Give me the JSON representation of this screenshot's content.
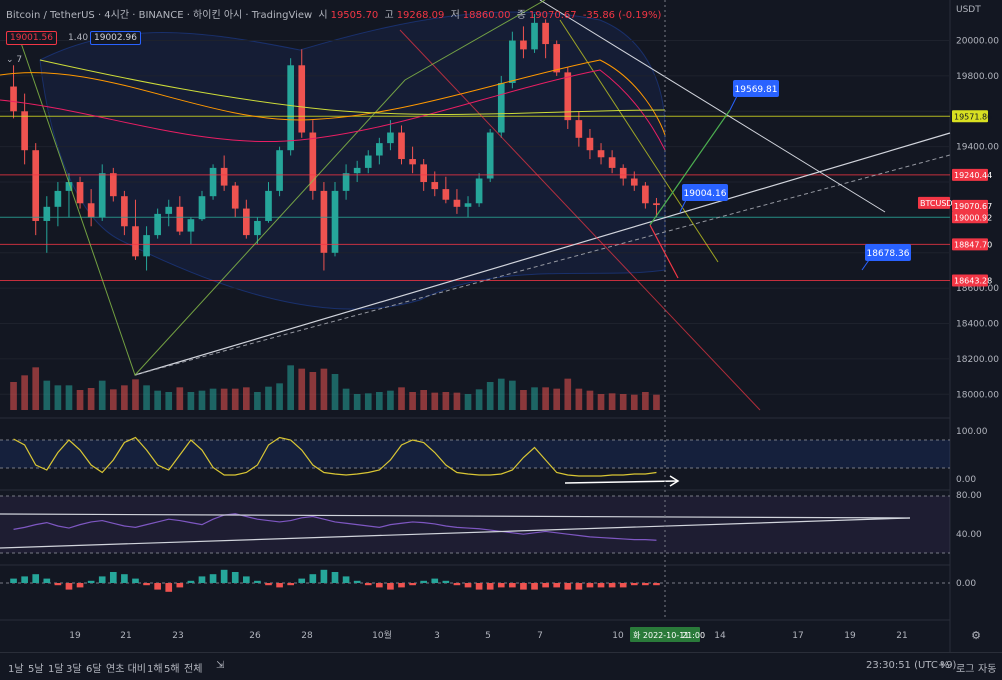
{
  "header": {
    "symbol": "Bitcoin / TetherUS · 4시간 · BINANCE · 하이킨 아시 · TradingView",
    "open_label": "시",
    "open_val": "19505.70",
    "high_label": "고",
    "high_val": "19268.09",
    "low_label": "저",
    "low_val": "18860.00",
    "close_label": "종",
    "close_val": "19070.67",
    "change": "-35.86 (-0.19%)",
    "price_left": "19001.56",
    "spread": "1.40",
    "price_right": "19002.96",
    "indicator_count": "7"
  },
  "price_axis": {
    "currency": "USDT",
    "ticks": [
      "20000.00",
      "19800.00",
      "19400.00",
      "18600.00",
      "18400.00",
      "18200.00",
      "18000.00"
    ],
    "tags": [
      {
        "label": "19571.86",
        "kind": "yellow"
      },
      {
        "label": "19240.44",
        "kind": "red"
      },
      {
        "label": "BTCUSDT",
        "kind": "red"
      },
      {
        "label": "19070.67",
        "kind": "red"
      },
      {
        "label": "19000.92",
        "kind": "red"
      },
      {
        "label": "18847.70",
        "kind": "red"
      },
      {
        "label": "18643.28",
        "kind": "red"
      }
    ]
  },
  "annotations": [
    {
      "label": "19569.81"
    },
    {
      "label": "19004.16"
    },
    {
      "label": "18678.36"
    }
  ],
  "oscillator1": {
    "ticks": [
      "100.00",
      "0.00"
    ]
  },
  "oscillator2": {
    "ticks": [
      "80.00",
      "40.00"
    ]
  },
  "oscillator3": {
    "ticks": [
      "0.00"
    ]
  },
  "time_axis": {
    "labels": [
      "19",
      "21",
      "23",
      "26",
      "28",
      "10월",
      "3",
      "5",
      "7",
      "10",
      "14",
      "17",
      "19",
      "21"
    ],
    "current_label": "화 2022-10-11",
    "current_time": "21:00"
  },
  "toolbar": {
    "ranges": [
      "1날",
      "5날",
      "1달",
      "3달",
      "6달",
      "연초 대비",
      "1해",
      "5해",
      "전체"
    ],
    "clock": "23:30:51 (UTC+9)",
    "percent": "%",
    "log": "로그",
    "auto": "자동"
  },
  "chart_data": {
    "type": "candlestick",
    "symbol": "BTCUSDT",
    "y_range": [
      17900,
      20150
    ],
    "horizontal_levels": [
      19571.86,
      19240.44,
      19000.92,
      18847.7,
      18643.28
    ],
    "last_price": 19070.67,
    "target_labels": [
      19569.81,
      19004.16,
      18678.36
    ],
    "candles": [
      [
        19740,
        19860,
        19560,
        19600
      ],
      [
        19600,
        19700,
        19300,
        19380
      ],
      [
        19380,
        19420,
        18900,
        18980
      ],
      [
        18980,
        19120,
        18800,
        19060
      ],
      [
        19060,
        19200,
        18950,
        19150
      ],
      [
        19150,
        19250,
        19000,
        19200
      ],
      [
        19200,
        19230,
        19050,
        19080
      ],
      [
        19080,
        19160,
        18950,
        19000
      ],
      [
        19000,
        19300,
        18980,
        19250
      ],
      [
        19250,
        19280,
        19090,
        19120
      ],
      [
        19120,
        19150,
        18900,
        18950
      ],
      [
        18950,
        19100,
        18760,
        18780
      ],
      [
        18780,
        18950,
        18700,
        18900
      ],
      [
        18900,
        19050,
        18880,
        19020
      ],
      [
        19020,
        19100,
        18950,
        19060
      ],
      [
        19060,
        19120,
        18900,
        18920
      ],
      [
        18920,
        19000,
        18850,
        18990
      ],
      [
        18990,
        19150,
        18980,
        19120
      ],
      [
        19120,
        19300,
        19100,
        19280
      ],
      [
        19280,
        19350,
        19150,
        19180
      ],
      [
        19180,
        19200,
        19000,
        19050
      ],
      [
        19050,
        19100,
        18880,
        18900
      ],
      [
        18900,
        19000,
        18850,
        18980
      ],
      [
        18980,
        19200,
        18970,
        19150
      ],
      [
        19150,
        19400,
        19120,
        19380
      ],
      [
        19380,
        19900,
        19350,
        19860
      ],
      [
        19860,
        19950,
        19450,
        19480
      ],
      [
        19480,
        19550,
        19100,
        19150
      ],
      [
        19150,
        19200,
        18700,
        18800
      ],
      [
        18800,
        19200,
        18780,
        19150
      ],
      [
        19150,
        19300,
        19100,
        19250
      ],
      [
        19250,
        19320,
        19200,
        19280
      ],
      [
        19280,
        19380,
        19250,
        19350
      ],
      [
        19350,
        19450,
        19300,
        19420
      ],
      [
        19420,
        19550,
        19380,
        19480
      ],
      [
        19480,
        19520,
        19300,
        19330
      ],
      [
        19330,
        19400,
        19250,
        19300
      ],
      [
        19300,
        19330,
        19150,
        19200
      ],
      [
        19200,
        19260,
        19120,
        19160
      ],
      [
        19160,
        19230,
        19080,
        19100
      ],
      [
        19100,
        19160,
        19020,
        19060
      ],
      [
        19060,
        19120,
        19000,
        19080
      ],
      [
        19080,
        19250,
        19060,
        19220
      ],
      [
        19220,
        19500,
        19200,
        19480
      ],
      [
        19480,
        19800,
        19450,
        19760
      ],
      [
        19760,
        20050,
        19730,
        20000
      ],
      [
        20000,
        20080,
        19900,
        19950
      ],
      [
        19950,
        20150,
        19930,
        20100
      ],
      [
        20100,
        20120,
        19900,
        19980
      ],
      [
        19980,
        20000,
        19800,
        19820
      ],
      [
        19820,
        19850,
        19500,
        19550
      ],
      [
        19550,
        19600,
        19400,
        19450
      ],
      [
        19450,
        19500,
        19330,
        19380
      ],
      [
        19380,
        19420,
        19300,
        19340
      ],
      [
        19340,
        19380,
        19250,
        19280
      ],
      [
        19280,
        19300,
        19180,
        19220
      ],
      [
        19220,
        19260,
        19150,
        19180
      ],
      [
        19180,
        19200,
        19050,
        19080
      ],
      [
        19080,
        19110,
        19000,
        19070
      ]
    ],
    "oscillator1_series": [
      82,
      70,
      30,
      20,
      55,
      80,
      60,
      30,
      15,
      40,
      75,
      85,
      60,
      30,
      20,
      50,
      80,
      60,
      25,
      10,
      10,
      15,
      30,
      70,
      85,
      80,
      60,
      30,
      15,
      12,
      10,
      12,
      15,
      20,
      40,
      70,
      80,
      75,
      55,
      30,
      15,
      12,
      10,
      10,
      12,
      20,
      45,
      65,
      40,
      15,
      10,
      8,
      8,
      8,
      10,
      10,
      12,
      12,
      15
    ],
    "oscillator2_series": [
      45,
      48,
      52,
      55,
      50,
      47,
      52,
      56,
      58,
      54,
      50,
      48,
      52,
      56,
      60,
      58,
      55,
      52,
      60,
      66,
      68,
      64,
      60,
      58,
      56,
      58,
      62,
      64,
      60,
      56,
      54,
      52,
      50,
      48,
      52,
      54,
      56,
      55,
      53,
      50,
      48,
      47,
      46,
      44,
      42,
      40,
      38,
      40,
      42,
      40,
      38,
      36,
      34,
      33,
      32,
      31,
      30,
      30,
      29
    ],
    "macd_hist": [
      2,
      3,
      4,
      2,
      -1,
      -3,
      -2,
      1,
      3,
      5,
      4,
      2,
      -1,
      -3,
      -4,
      -2,
      1,
      3,
      4,
      6,
      5,
      3,
      1,
      -1,
      -2,
      -1,
      2,
      4,
      6,
      5,
      3,
      1,
      -1,
      -2,
      -3,
      -2,
      -1,
      1,
      2,
      1,
      -1,
      -2,
      -3,
      -3,
      -2,
      -2,
      -3,
      -3,
      -2,
      -2,
      -3,
      -3,
      -2,
      -2,
      -2,
      -2,
      -1,
      -1,
      -1
    ]
  }
}
